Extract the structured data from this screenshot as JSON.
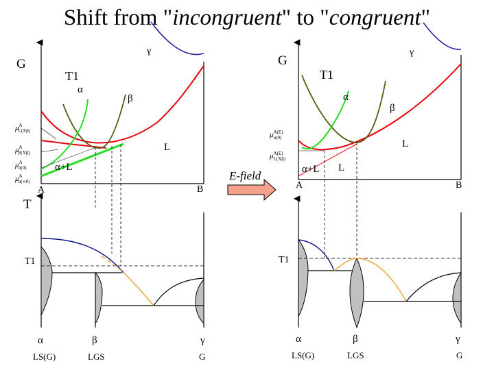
{
  "title": {
    "part1": "Shift from \"",
    "word1": "incongruent",
    "part2": "\" to \"",
    "word2": "congruent",
    "part3": "\""
  },
  "arrow": {
    "label": "E-field",
    "fill_color": "#f4a08a"
  },
  "left_energy": {
    "y_axis": "G",
    "temp": "T1",
    "phase_alpha": "α",
    "phase_beta": "β",
    "phase_gamma": "γ",
    "phase_liquid": "L",
    "region": "α+L",
    "mu_1": "μ",
    "mu_1_sup": "A",
    "mu_1_sub": "L(Xβ)",
    "mu_2": "μ",
    "mu_2_sup": "A",
    "mu_2_sub": "β(Xβ)",
    "mu_3": "μ",
    "mu_3_sup": "A",
    "mu_3_sub": "α(0)",
    "mu_4": "μ",
    "mu_4_sup": "A",
    "mu_4_sub": "α(∞0)",
    "x_left": "A",
    "x_right": "B"
  },
  "right_energy": {
    "y_axis": "G",
    "temp": "T1",
    "phase_alpha": "α",
    "phase_beta": "β",
    "phase_gamma": "γ",
    "phase_liquid": "L",
    "phase_liquid_2": "L",
    "region": "α+L",
    "mu_1": "μ",
    "mu_1_sup": "A(E)",
    "mu_1_sub": "α(0)",
    "mu_2": "μ",
    "mu_2_sup": "A(E)",
    "mu_2_sub": "L(Xβ)",
    "x_left": "A",
    "x_right": "B"
  },
  "left_phase": {
    "y_axis": "T",
    "temp": "T1",
    "labels": [
      {
        "sym": "α",
        "name": "LS(G)"
      },
      {
        "sym": "β",
        "name": "LGS"
      },
      {
        "sym": "γ",
        "name": "G"
      }
    ]
  },
  "right_phase": {
    "temp": "T1",
    "labels": [
      {
        "sym": "α",
        "name": "LS(G)"
      },
      {
        "sym": "β",
        "name": "LGS"
      },
      {
        "sym": "γ",
        "name": "G"
      }
    ]
  },
  "colors": {
    "liquid_curve": "#e8000b",
    "alpha_curve": "#22dd22",
    "beta_curve": "#5a5a14",
    "gamma_curve": "#3a1aa0",
    "liquidus": "#10108a",
    "orange_curve": "#f0a030",
    "lens_fill": "#c0c0c0"
  }
}
